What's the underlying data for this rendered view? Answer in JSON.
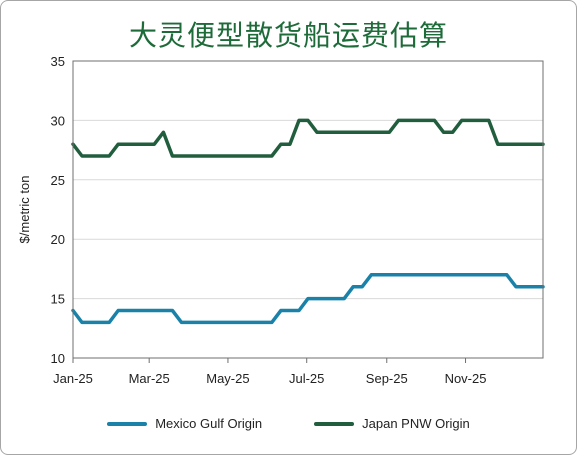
{
  "chart_data": {
    "type": "line",
    "title": "大灵便型散货船运费估算",
    "ylabel": "$/metric ton",
    "xlabel": "",
    "ylim": [
      10,
      35
    ],
    "yticks": [
      10,
      15,
      20,
      25,
      30,
      35
    ],
    "xticks": [
      "Jan-25",
      "Mar-25",
      "May-25",
      "Jul-25",
      "Sep-25",
      "Nov-25"
    ],
    "grid": true,
    "legend_position": "bottom",
    "x": [
      "2025-01-01",
      "2025-01-08",
      "2025-01-15",
      "2025-01-22",
      "2025-01-29",
      "2025-02-05",
      "2025-02-12",
      "2025-02-19",
      "2025-02-26",
      "2025-03-05",
      "2025-03-12",
      "2025-03-19",
      "2025-03-26",
      "2025-04-02",
      "2025-04-09",
      "2025-04-16",
      "2025-04-23",
      "2025-04-30",
      "2025-05-07",
      "2025-05-14",
      "2025-05-21",
      "2025-05-28",
      "2025-06-04",
      "2025-06-11",
      "2025-06-18",
      "2025-06-25",
      "2025-07-02",
      "2025-07-09",
      "2025-07-16",
      "2025-07-23",
      "2025-07-30",
      "2025-08-06",
      "2025-08-13",
      "2025-08-20",
      "2025-08-27",
      "2025-09-03",
      "2025-09-10",
      "2025-09-17",
      "2025-09-24",
      "2025-10-01",
      "2025-10-08",
      "2025-10-15",
      "2025-10-22",
      "2025-10-29",
      "2025-11-05",
      "2025-11-12",
      "2025-11-19",
      "2025-11-26",
      "2025-12-03",
      "2025-12-10",
      "2025-12-17",
      "2025-12-24",
      "2025-12-31"
    ],
    "series": [
      {
        "name": "Mexico Gulf Origin",
        "color": "#1a82a8",
        "values": [
          14,
          13,
          13,
          13,
          13,
          14,
          14,
          14,
          14,
          14,
          14,
          14,
          13,
          13,
          13,
          13,
          13,
          13,
          13,
          13,
          13,
          13,
          13,
          14,
          14,
          14,
          15,
          15,
          15,
          15,
          15,
          16,
          16,
          17,
          17,
          17,
          17,
          17,
          17,
          17,
          17,
          17,
          17,
          17,
          17,
          17,
          17,
          17,
          17,
          16,
          16,
          16,
          16
        ]
      },
      {
        "name": "Japan PNW Origin",
        "color": "#215e3e",
        "values": [
          28,
          27,
          27,
          27,
          27,
          28,
          28,
          28,
          28,
          28,
          29,
          27,
          27,
          27,
          27,
          27,
          27,
          27,
          27,
          27,
          27,
          27,
          27,
          28,
          28,
          30,
          30,
          29,
          29,
          29,
          29,
          29,
          29,
          29,
          29,
          29,
          30,
          30,
          30,
          30,
          30,
          29,
          29,
          30,
          30,
          30,
          30,
          28,
          28,
          28,
          28,
          28,
          28
        ]
      }
    ]
  }
}
